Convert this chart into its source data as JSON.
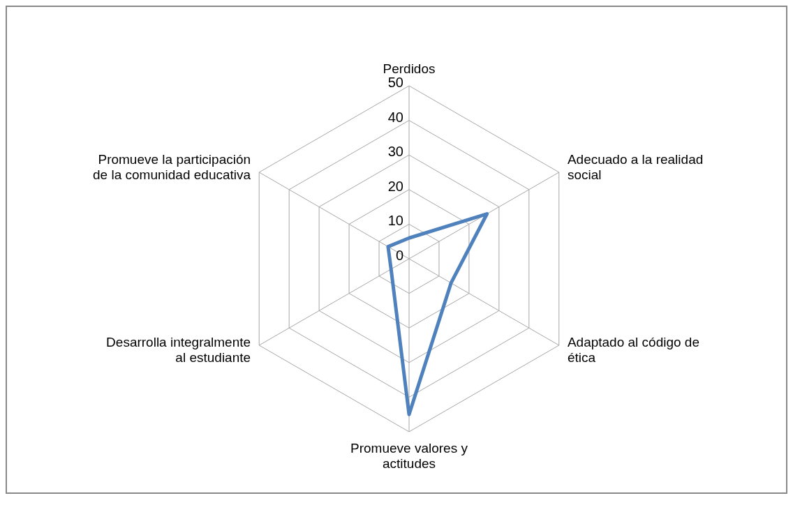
{
  "chart_data": {
    "type": "radar",
    "categories": [
      "Perdidos",
      "Adecuado a la realidad social",
      "Adaptado al código de ética",
      "Promueve valores y actitudes",
      "Desarrolla integralmente al estudiante",
      "Promueve la participación de la comunidad educativa"
    ],
    "series": [
      {
        "color": "#4f81bd",
        "values": [
          6,
          26,
          14,
          45,
          6,
          7
        ]
      }
    ],
    "ylim": [
      0,
      50
    ],
    "yticks": [
      0,
      10,
      20,
      30,
      40,
      50
    ],
    "grid": true
  }
}
